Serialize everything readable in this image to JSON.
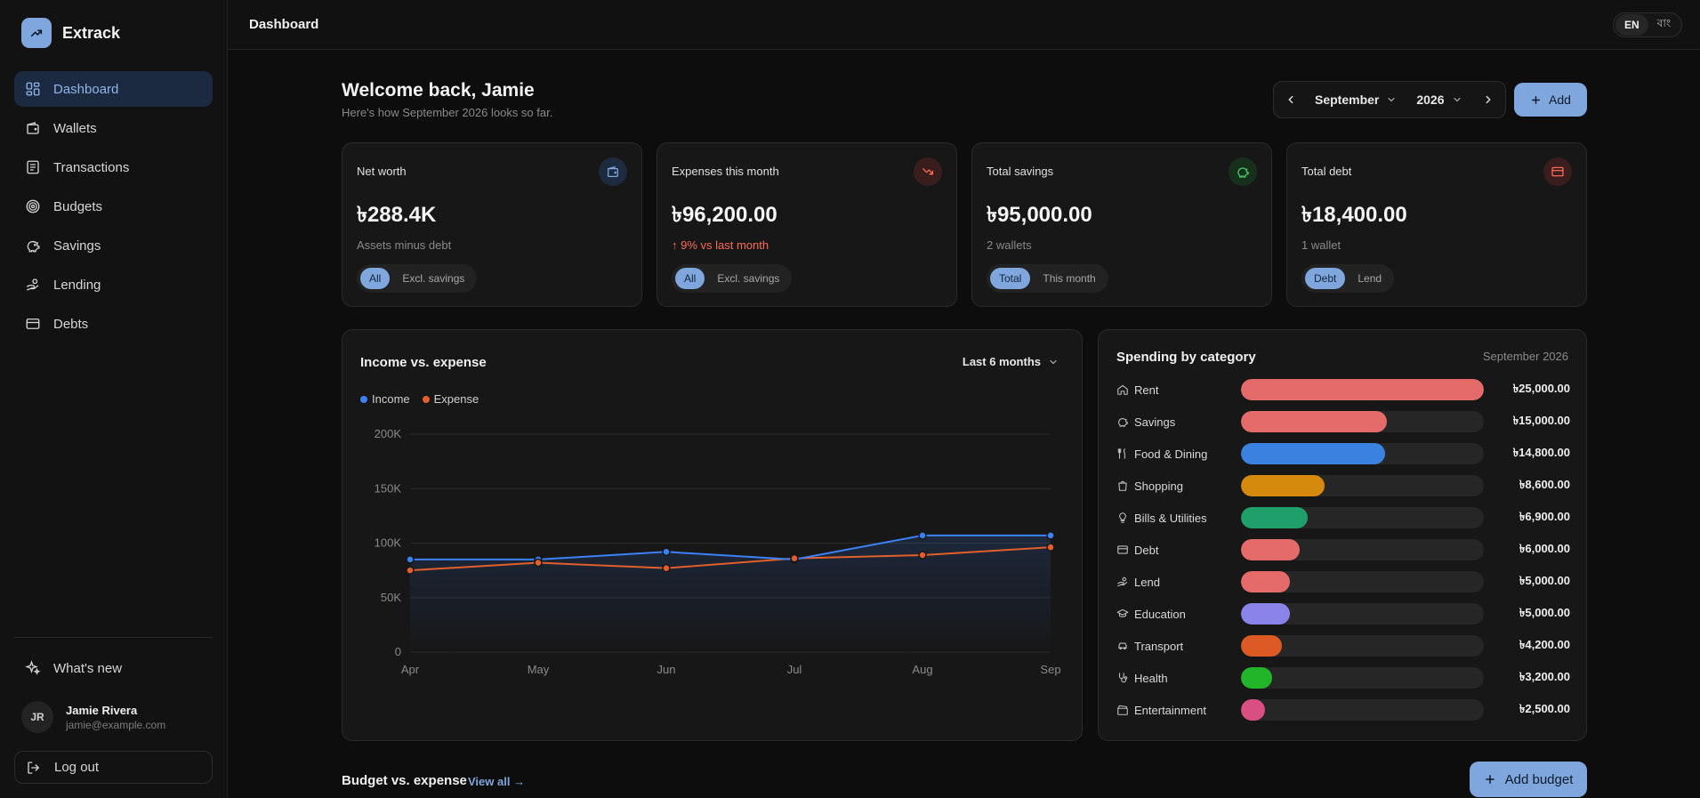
{
  "app": {
    "brand": "Extrack"
  },
  "header": {
    "title": "Dashboard",
    "lang_en": "EN",
    "lang_bn": "বাং"
  },
  "sidebar": {
    "items": [
      {
        "label": "Dashboard",
        "icon": "grid-icon"
      },
      {
        "label": "Wallets",
        "icon": "wallet-icon"
      },
      {
        "label": "Transactions",
        "icon": "receipt-icon"
      },
      {
        "label": "Budgets",
        "icon": "target-icon"
      },
      {
        "label": "Savings",
        "icon": "piggy-bank-icon"
      },
      {
        "label": "Lending",
        "icon": "hand-coins-icon"
      },
      {
        "label": "Debts",
        "icon": "credit-card-icon"
      }
    ],
    "whats_new": "What's new",
    "user": {
      "initials": "JR",
      "name": "Jamie Rivera",
      "email": "jamie@example.com"
    },
    "logout": "Log out"
  },
  "main": {
    "welcome": "Welcome back, Jamie",
    "subtitle": "Here's how September 2026 looks so far.",
    "month": "September",
    "year": "2026",
    "add_label": "Add"
  },
  "cards": [
    {
      "title": "Net worth",
      "value": "৳288.4K",
      "sub": "Assets minus debt",
      "seg": [
        "All",
        "Excl. savings"
      ],
      "icon": "wallet-icon",
      "color": "#1d2b40",
      "stroke": "#7fa7dd"
    },
    {
      "title": "Expenses this month",
      "value": "৳96,200.00",
      "sub": "9% vs last month",
      "seg": [
        "All",
        "Excl. savings"
      ],
      "icon": "trending-down-icon",
      "color": "#3a1d1d",
      "stroke": "#ff6b57"
    },
    {
      "title": "Total savings",
      "value": "৳95,000.00",
      "sub": "2 wallets",
      "seg": [
        "Total",
        "This month"
      ],
      "icon": "piggy-bank-icon",
      "color": "#17301c",
      "stroke": "#4ccf6b"
    },
    {
      "title": "Total debt",
      "value": "৳18,400.00",
      "sub": "1 wallet",
      "seg": [
        "Debt",
        "Lend"
      ],
      "icon": "credit-card-icon",
      "color": "#3a1d1d",
      "stroke": "#ff6b57"
    }
  ],
  "income_chart": {
    "title": "Income vs. expense",
    "range": "Last 6 months"
  },
  "chart_data": {
    "type": "line",
    "x": [
      "Apr",
      "May",
      "Jun",
      "Jul",
      "Aug",
      "Sep"
    ],
    "series": [
      {
        "name": "Income",
        "color": "#3b82f6",
        "values": [
          85000,
          85000,
          92000,
          85000,
          107000,
          107000
        ]
      },
      {
        "name": "Expense",
        "color": "#e25f2c",
        "values": [
          75000,
          82000,
          77000,
          86000,
          89000,
          96200
        ]
      }
    ],
    "yticks": [
      "0",
      "50K",
      "100K",
      "150K",
      "200K"
    ],
    "ylim": [
      0,
      200000
    ],
    "grid": true,
    "legend": "top-left"
  },
  "spending": {
    "title": "Spending by category",
    "period": "September 2026",
    "max": 25000,
    "rows": [
      {
        "name": "Rent",
        "amount": "৳25,000.00",
        "value": 25000,
        "color": "#e56b6b",
        "icon": "home-icon"
      },
      {
        "name": "Savings",
        "amount": "৳15,000.00",
        "value": 15000,
        "color": "#e56b6b",
        "icon": "piggy-bank-icon"
      },
      {
        "name": "Food & Dining",
        "amount": "৳14,800.00",
        "value": 14800,
        "color": "#3b82e0",
        "icon": "utensils-icon"
      },
      {
        "name": "Shopping",
        "amount": "৳8,600.00",
        "value": 8600,
        "color": "#d58a0e",
        "icon": "shopping-bag-icon"
      },
      {
        "name": "Bills & Utilities",
        "amount": "৳6,900.00",
        "value": 6900,
        "color": "#1fa06a",
        "icon": "lightbulb-icon"
      },
      {
        "name": "Debt",
        "amount": "৳6,000.00",
        "value": 6000,
        "color": "#e56b6b",
        "icon": "credit-card-icon"
      },
      {
        "name": "Lend",
        "amount": "৳5,000.00",
        "value": 5000,
        "color": "#e56b6b",
        "icon": "hand-coins-icon"
      },
      {
        "name": "Education",
        "amount": "৳5,000.00",
        "value": 5000,
        "color": "#8b84e8",
        "icon": "graduation-cap-icon"
      },
      {
        "name": "Transport",
        "amount": "৳4,200.00",
        "value": 4200,
        "color": "#dd5a25",
        "icon": "car-icon"
      },
      {
        "name": "Health",
        "amount": "৳3,200.00",
        "value": 3200,
        "color": "#22b52a",
        "icon": "stethoscope-icon"
      },
      {
        "name": "Entertainment",
        "amount": "৳2,500.00",
        "value": 2500,
        "color": "#d94f82",
        "icon": "clapperboard-icon"
      }
    ]
  },
  "budget": {
    "title": "Budget vs. expense",
    "view_all": "View all →",
    "add_label": "Add budget"
  }
}
